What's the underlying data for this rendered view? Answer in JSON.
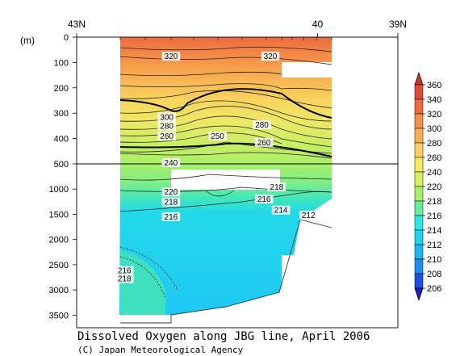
{
  "chart_data": {
    "type": "heatmap",
    "title": "Dissolved Oxygen along JBG line, April 2006",
    "credit": "(C) Japan Meteorological Agency",
    "unit_label": "(m)",
    "x_ticks": [
      "43N",
      "40",
      "39N"
    ],
    "y_ticks_upper": [
      "0",
      "100",
      "200",
      "300",
      "400",
      "500"
    ],
    "y_ticks_lower": [
      "1000",
      "1500",
      "2000",
      "2500",
      "3000",
      "3500"
    ],
    "colorbar": {
      "levels": [
        "206",
        "208",
        "210",
        "212",
        "214",
        "216",
        "218",
        "220",
        "240",
        "260",
        "280",
        "300",
        "320",
        "340",
        "360"
      ],
      "colors": [
        "#1a1ac8",
        "#1f4fe0",
        "#1f8ef0",
        "#1fb5f5",
        "#20d2f2",
        "#2ee6e6",
        "#66ee9a",
        "#a8f06a",
        "#d8f060",
        "#f5ea60",
        "#f8d060",
        "#f8b050",
        "#f49048",
        "#ee6a40",
        "#e04a3a",
        "#c8302e"
      ]
    },
    "contour_labels": [
      {
        "text": "320",
        "x": 0.24,
        "depth": 80
      },
      {
        "text": "320",
        "x": 0.71,
        "depth": 80
      },
      {
        "text": "300",
        "x": 0.22,
        "depth": 320
      },
      {
        "text": "280",
        "x": 0.22,
        "depth": 355
      },
      {
        "text": "260",
        "x": 0.22,
        "depth": 395
      },
      {
        "text": "250",
        "x": 0.46,
        "depth": 395
      },
      {
        "text": "280",
        "x": 0.67,
        "depth": 350
      },
      {
        "text": "260",
        "x": 0.68,
        "depth": 420
      },
      {
        "text": "240",
        "x": 0.24,
        "depth": 500
      },
      {
        "text": "220",
        "x": 0.24,
        "depth": 1080
      },
      {
        "text": "218",
        "x": 0.24,
        "depth": 1280
      },
      {
        "text": "216",
        "x": 0.24,
        "depth": 1570
      },
      {
        "text": "218",
        "x": 0.74,
        "depth": 980
      },
      {
        "text": "216",
        "x": 0.68,
        "depth": 1220
      },
      {
        "text": "214",
        "x": 0.76,
        "depth": 1440
      },
      {
        "text": "212",
        "x": 0.89,
        "depth": 1540
      },
      {
        "text": "216",
        "x": 0.02,
        "depth": 2640
      },
      {
        "text": "218",
        "x": 0.02,
        "depth": 2800
      }
    ]
  }
}
